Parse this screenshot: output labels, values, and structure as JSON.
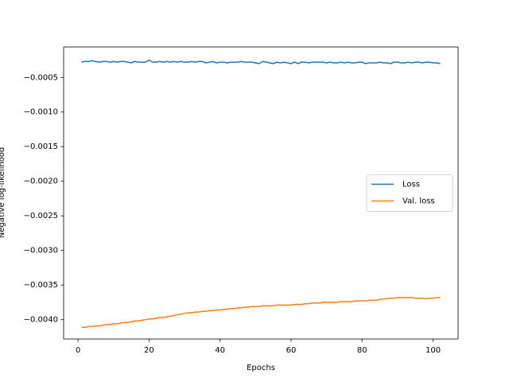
{
  "chart_data": {
    "type": "line",
    "x_label": "Epochs",
    "y_label": "Negative log-likelihood",
    "x": [
      1,
      2,
      3,
      4,
      5,
      6,
      7,
      8,
      9,
      10,
      11,
      12,
      13,
      14,
      15,
      16,
      17,
      18,
      19,
      20,
      21,
      22,
      23,
      24,
      25,
      26,
      27,
      28,
      29,
      30,
      31,
      32,
      33,
      34,
      35,
      36,
      37,
      38,
      39,
      40,
      41,
      42,
      43,
      44,
      45,
      46,
      47,
      48,
      49,
      50,
      51,
      52,
      53,
      54,
      55,
      56,
      57,
      58,
      59,
      60,
      61,
      62,
      63,
      64,
      65,
      66,
      67,
      68,
      69,
      70,
      71,
      72,
      73,
      74,
      75,
      76,
      77,
      78,
      79,
      80,
      81,
      82,
      83,
      84,
      85,
      86,
      87,
      88,
      89,
      90,
      91,
      92,
      93,
      94,
      95,
      96,
      97,
      98,
      99,
      100,
      101,
      102
    ],
    "series": [
      {
        "name": "Loss",
        "color": "#1f77b4",
        "values": [
          -0.00028,
          -0.00027,
          -0.00027,
          -0.00026,
          -0.00027,
          -0.00028,
          -0.00027,
          -0.00027,
          -0.00028,
          -0.00027,
          -0.00028,
          -0.00027,
          -0.00027,
          -0.00028,
          -0.00029,
          -0.00027,
          -0.00028,
          -0.00028,
          -0.00028,
          -0.00025,
          -0.00028,
          -0.00028,
          -0.00027,
          -0.00028,
          -0.00027,
          -0.00028,
          -0.00027,
          -0.00028,
          -0.00027,
          -0.00028,
          -0.00028,
          -0.00027,
          -0.00028,
          -0.00027,
          -0.00027,
          -0.00029,
          -0.00028,
          -0.00027,
          -0.00029,
          -0.00028,
          -0.00028,
          -0.00029,
          -0.00028,
          -0.00028,
          -0.00028,
          -0.00027,
          -0.00028,
          -0.00028,
          -0.00028,
          -0.00029,
          -0.0003,
          -0.00027,
          -0.00028,
          -0.00029,
          -0.0003,
          -0.00028,
          -0.00029,
          -0.00028,
          -0.00029,
          -0.0003,
          -0.00028,
          -0.0003,
          -0.00028,
          -0.00028,
          -0.00029,
          -0.00028,
          -0.00028,
          -0.00028,
          -0.00028,
          -0.00029,
          -0.00028,
          -0.00029,
          -0.00029,
          -0.00028,
          -0.00029,
          -0.00028,
          -0.00029,
          -0.00029,
          -0.00028,
          -0.00028,
          -0.0003,
          -0.00029,
          -0.00029,
          -0.00029,
          -0.00028,
          -0.00029,
          -0.00029,
          -0.0003,
          -0.00028,
          -0.00028,
          -0.00029,
          -0.00029,
          -0.00028,
          -0.00029,
          -0.00028,
          -0.00028,
          -0.00029,
          -0.00028,
          -0.00028,
          -0.00029,
          -0.00029,
          -0.0003
        ]
      },
      {
        "name": "Val. loss",
        "color": "#ff7f0e",
        "values": [
          -0.00411,
          -0.00411,
          -0.0041,
          -0.0041,
          -0.00409,
          -0.00409,
          -0.00408,
          -0.00407,
          -0.00407,
          -0.00406,
          -0.00406,
          -0.00405,
          -0.00404,
          -0.00404,
          -0.00403,
          -0.00402,
          -0.00402,
          -0.00401,
          -0.004,
          -0.00399,
          -0.00399,
          -0.00398,
          -0.00397,
          -0.00397,
          -0.00396,
          -0.00395,
          -0.00394,
          -0.00393,
          -0.00392,
          -0.00391,
          -0.0039,
          -0.0039,
          -0.00389,
          -0.00389,
          -0.00388,
          -0.00388,
          -0.00387,
          -0.00387,
          -0.00386,
          -0.00386,
          -0.00385,
          -0.00385,
          -0.00384,
          -0.00384,
          -0.00383,
          -0.00383,
          -0.00382,
          -0.00382,
          -0.00381,
          -0.00381,
          -0.00381,
          -0.0038,
          -0.0038,
          -0.0038,
          -0.0038,
          -0.00379,
          -0.00379,
          -0.00379,
          -0.00379,
          -0.00379,
          -0.00378,
          -0.00378,
          -0.00378,
          -0.00377,
          -0.00377,
          -0.00376,
          -0.00376,
          -0.00376,
          -0.00375,
          -0.00375,
          -0.00375,
          -0.00375,
          -0.00375,
          -0.00374,
          -0.00374,
          -0.00374,
          -0.00374,
          -0.00373,
          -0.00373,
          -0.00373,
          -0.00373,
          -0.00372,
          -0.00372,
          -0.00372,
          -0.00371,
          -0.0037,
          -0.0037,
          -0.00369,
          -0.00369,
          -0.00368,
          -0.00368,
          -0.00368,
          -0.00368,
          -0.00368,
          -0.00369,
          -0.00369,
          -0.00369,
          -0.0037,
          -0.00369,
          -0.00369,
          -0.00368,
          -0.00368
        ]
      }
    ],
    "xlim": [
      -4.05,
      107.05
    ],
    "xticks": [
      0,
      20,
      40,
      60,
      80,
      100
    ],
    "ylim": [
      -0.00428,
      -6e-05
    ],
    "yticks": [
      {
        "value": -0.004,
        "label": "−0.0040"
      },
      {
        "value": -0.0035,
        "label": "−0.0035"
      },
      {
        "value": -0.003,
        "label": "−0.0030"
      },
      {
        "value": -0.0025,
        "label": "−0.0025"
      },
      {
        "value": -0.002,
        "label": "−0.0020"
      },
      {
        "value": -0.0015,
        "label": "−0.0015"
      },
      {
        "value": -0.001,
        "label": "−0.0010"
      },
      {
        "value": -0.0005,
        "label": "−0.0005"
      }
    ],
    "legend": "center right",
    "grid": false
  }
}
